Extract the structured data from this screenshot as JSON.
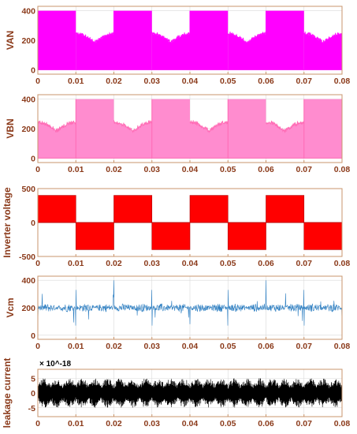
{
  "chart_data": [
    {
      "type": "line",
      "ylabel": "VAN",
      "xlim": [
        0,
        0.08
      ],
      "ylim": [
        -30,
        430
      ],
      "xticks": [
        "0",
        "0.01",
        "0.02",
        "0.03",
        "0.04",
        "0.05",
        "0.06",
        "0.07",
        "0.08"
      ],
      "yticks": [
        0,
        200,
        400
      ],
      "grid": true,
      "color": "#ff00ff",
      "fill_color": "#ff00ff",
      "series": [
        {
          "period": 0.02,
          "full_fill_half": "first",
          "high": 400,
          "low": 0,
          "envelope_edge": 240,
          "envelope_center": 180
        }
      ]
    },
    {
      "type": "line",
      "ylabel": "VBN",
      "xlim": [
        0,
        0.08
      ],
      "ylim": [
        -30,
        430
      ],
      "xticks": [
        "0",
        "0.01",
        "0.02",
        "0.03",
        "0.04",
        "0.05",
        "0.06",
        "0.07",
        "0.08"
      ],
      "yticks": [
        0,
        200,
        400
      ],
      "grid": true,
      "color": "#ff69b4",
      "fill_color": "#ff8ccf",
      "series": [
        {
          "period": 0.02,
          "full_fill_half": "second",
          "high": 400,
          "low": 0,
          "envelope_edge": 240,
          "envelope_center": 180
        }
      ]
    },
    {
      "type": "area",
      "ylabel": "Inverter voltage",
      "xlim": [
        0,
        0.08
      ],
      "ylim": [
        -500,
        500
      ],
      "xticks": [
        "0",
        "0.01",
        "0.02",
        "0.03",
        "0.04",
        "0.05",
        "0.06",
        "0.07",
        "0.08"
      ],
      "yticks": [
        -500,
        0,
        500
      ],
      "grid": false,
      "color": "#ff0000",
      "fill_color": "#ff0000",
      "series": [
        {
          "period": 0.02,
          "amplitude": 400
        }
      ]
    },
    {
      "type": "line",
      "ylabel": "Vcm",
      "xlim": [
        0,
        0.08
      ],
      "ylim": [
        -30,
        430
      ],
      "xticks": [
        "0",
        "0.01",
        "0.02",
        "0.03",
        "0.04",
        "0.05",
        "0.06",
        "0.07",
        "0.08"
      ],
      "yticks": [
        0,
        200,
        400
      ],
      "grid": true,
      "color": "#2e7fc2",
      "series": [
        {
          "mean": 200,
          "band": 30,
          "spike_max": 400,
          "spike_min": 0,
          "spike_interval": 0.02
        }
      ]
    },
    {
      "type": "line",
      "ylabel": "leakage current",
      "exponent": "× 10^-18",
      "xlim": [
        0,
        0.08
      ],
      "ylim": [
        -8,
        8
      ],
      "xticks": [
        "0",
        "0.01",
        "0.02",
        "0.03",
        "0.04",
        "0.05",
        "0.06",
        "0.07",
        "0.08"
      ],
      "yticks": [
        -5,
        0,
        5
      ],
      "grid": true,
      "color": "#000000",
      "series": [
        {
          "band": 5
        }
      ]
    }
  ]
}
